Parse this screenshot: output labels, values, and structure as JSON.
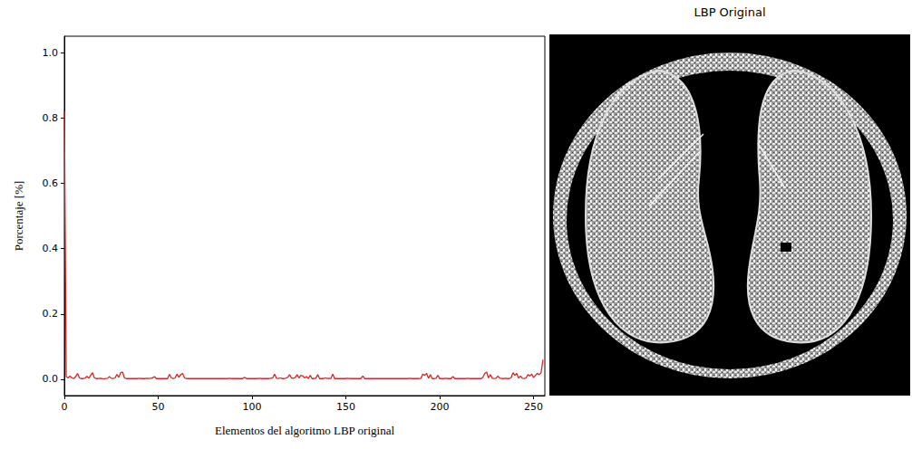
{
  "chart_data": {
    "type": "line",
    "x_label": "Elementos del algoritmo LBP original",
    "y_label": "Porcentaje [%]",
    "color": "#d62728",
    "grid": false,
    "xlim": [
      0,
      256
    ],
    "xticks": [
      0,
      50,
      100,
      150,
      200,
      250
    ],
    "ylim": [
      -0.05,
      1.05
    ],
    "yticks": [
      {
        "value": 0,
        "label": "0.0"
      },
      {
        "value": 0.2,
        "label": "0.2"
      },
      {
        "value": 0.4,
        "label": "0.4"
      },
      {
        "value": 0.6,
        "label": "0.6"
      },
      {
        "value": 0.8,
        "label": "0.8"
      },
      {
        "value": 1,
        "label": "1.0"
      }
    ],
    "x": [
      0,
      1,
      2,
      3,
      4,
      5,
      6,
      7,
      8,
      9,
      10,
      11,
      12,
      13,
      14,
      15,
      16,
      17,
      18,
      19,
      20,
      21,
      22,
      23,
      24,
      25,
      26,
      27,
      28,
      29,
      30,
      31,
      32,
      33,
      34,
      35,
      36,
      37,
      38,
      39,
      40,
      41,
      42,
      43,
      44,
      45,
      46,
      47,
      48,
      49,
      50,
      51,
      52,
      53,
      54,
      55,
      56,
      57,
      58,
      59,
      60,
      61,
      62,
      63,
      64,
      65,
      66,
      67,
      68,
      69,
      70,
      71,
      72,
      73,
      74,
      75,
      76,
      77,
      78,
      79,
      80,
      81,
      82,
      83,
      84,
      85,
      86,
      87,
      88,
      89,
      90,
      91,
      92,
      93,
      94,
      95,
      96,
      97,
      98,
      99,
      100,
      101,
      102,
      103,
      104,
      105,
      106,
      107,
      108,
      109,
      110,
      111,
      112,
      113,
      114,
      115,
      116,
      117,
      118,
      119,
      120,
      121,
      122,
      123,
      124,
      125,
      126,
      127,
      128,
      129,
      130,
      131,
      132,
      133,
      134,
      135,
      136,
      137,
      138,
      139,
      140,
      141,
      142,
      143,
      144,
      145,
      146,
      147,
      148,
      149,
      150,
      151,
      152,
      153,
      154,
      155,
      156,
      157,
      158,
      159,
      160,
      161,
      162,
      163,
      164,
      165,
      166,
      167,
      168,
      169,
      170,
      171,
      172,
      173,
      174,
      175,
      176,
      177,
      178,
      179,
      180,
      181,
      182,
      183,
      184,
      185,
      186,
      187,
      188,
      189,
      190,
      191,
      192,
      193,
      194,
      195,
      196,
      197,
      198,
      199,
      200,
      201,
      202,
      203,
      204,
      205,
      206,
      207,
      208,
      209,
      210,
      211,
      212,
      213,
      214,
      215,
      216,
      217,
      218,
      219,
      220,
      221,
      222,
      223,
      224,
      225,
      226,
      227,
      228,
      229,
      230,
      231,
      232,
      233,
      234,
      235,
      236,
      237,
      238,
      239,
      240,
      241,
      242,
      243,
      244,
      245,
      246,
      247,
      248,
      249,
      250,
      251,
      252,
      253,
      254,
      255
    ],
    "values": [
      0.82,
      0.008,
      0.004,
      0.01,
      0.004,
      0.002,
      0.008,
      0.018,
      0.004,
      0.002,
      0.002,
      0.003,
      0.009,
      0.003,
      0.012,
      0.02,
      0.004,
      0.002,
      0.002,
      0.003,
      0.002,
      0.001,
      0.002,
      0.003,
      0.008,
      0.003,
      0.002,
      0.004,
      0.015,
      0.006,
      0.02,
      0.022,
      0.004,
      0.002,
      0.002,
      0.002,
      0.002,
      0.002,
      0.002,
      0.002,
      0.003,
      0.002,
      0.002,
      0.002,
      0.003,
      0.002,
      0.003,
      0.004,
      0.008,
      0.002,
      0.002,
      0.002,
      0.002,
      0.002,
      0.002,
      0.002,
      0.015,
      0.004,
      0.002,
      0.004,
      0.016,
      0.006,
      0.014,
      0.018,
      0.004,
      0.002,
      0.002,
      0.002,
      0.002,
      0.002,
      0.002,
      0.002,
      0.002,
      0.002,
      0.002,
      0.002,
      0.002,
      0.002,
      0.002,
      0.002,
      0.002,
      0.002,
      0.002,
      0.002,
      0.002,
      0.002,
      0.002,
      0.002,
      0.003,
      0.002,
      0.002,
      0.002,
      0.002,
      0.002,
      0.002,
      0.002,
      0.006,
      0.002,
      0.002,
      0.002,
      0.002,
      0.002,
      0.002,
      0.002,
      0.003,
      0.002,
      0.002,
      0.002,
      0.002,
      0.002,
      0.003,
      0.004,
      0.016,
      0.003,
      0.002,
      0.004,
      0.002,
      0.002,
      0.003,
      0.006,
      0.014,
      0.004,
      0.003,
      0.005,
      0.014,
      0.004,
      0.012,
      0.01,
      0.004,
      0.008,
      0.002,
      0.012,
      0.002,
      0.002,
      0.003,
      0.014,
      0.002,
      0.002,
      0.002,
      0.004,
      0.002,
      0.003,
      0.002,
      0.016,
      0.002,
      0.002,
      0.002,
      0.002,
      0.002,
      0.002,
      0.002,
      0.003,
      0.002,
      0.002,
      0.002,
      0.002,
      0.002,
      0.002,
      0.002,
      0.01,
      0.002,
      0.002,
      0.002,
      0.002,
      0.002,
      0.002,
      0.002,
      0.002,
      0.002,
      0.002,
      0.002,
      0.002,
      0.002,
      0.002,
      0.002,
      0.002,
      0.002,
      0.002,
      0.002,
      0.002,
      0.002,
      0.002,
      0.002,
      0.002,
      0.003,
      0.002,
      0.002,
      0.002,
      0.002,
      0.002,
      0.003,
      0.016,
      0.012,
      0.018,
      0.003,
      0.014,
      0.002,
      0.002,
      0.003,
      0.012,
      0.002,
      0.002,
      0.002,
      0.003,
      0.002,
      0.002,
      0.002,
      0.008,
      0.002,
      0.002,
      0.002,
      0.002,
      0.002,
      0.002,
      0.002,
      0.003,
      0.002,
      0.002,
      0.002,
      0.002,
      0.002,
      0.002,
      0.002,
      0.006,
      0.018,
      0.022,
      0.004,
      0.014,
      0.003,
      0.002,
      0.003,
      0.01,
      0.003,
      0.002,
      0.002,
      0.003,
      0.002,
      0.002,
      0.004,
      0.02,
      0.012,
      0.018,
      0.003,
      0.01,
      0.003,
      0.002,
      0.004,
      0.014,
      0.01,
      0.016,
      0.005,
      0.012,
      0.018,
      0.014,
      0.02,
      0.06
    ]
  },
  "image_panel": {
    "title": "LBP Original"
  }
}
